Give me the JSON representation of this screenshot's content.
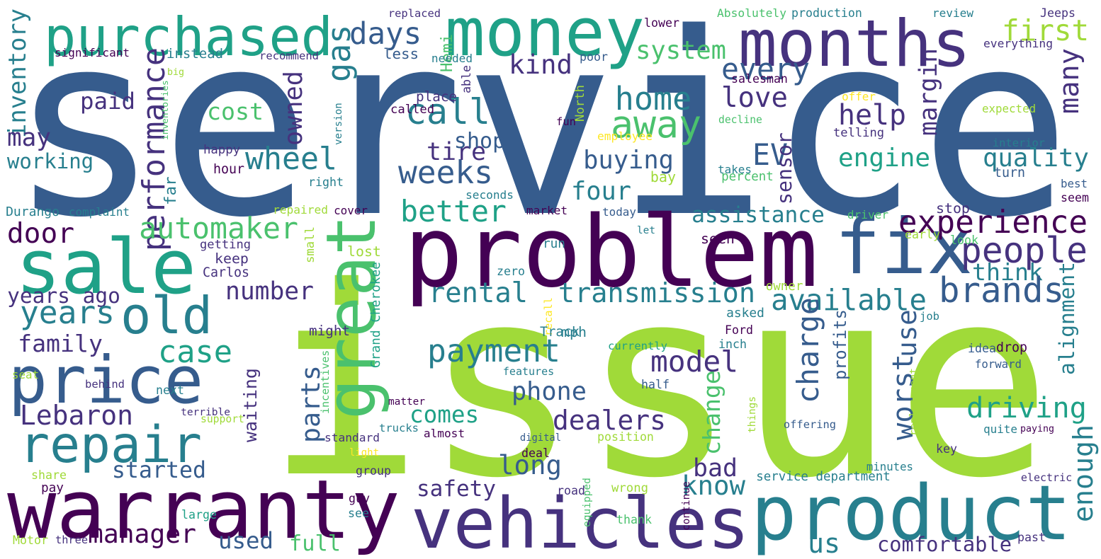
{
  "title": "",
  "palette": {
    "dark_purple": "#440154",
    "indigo": "#46327e",
    "blue": "#365c8d",
    "teal_blue": "#277f8e",
    "teal": "#1fa187",
    "green": "#4ac16d",
    "lime": "#a0da39",
    "yellow": "#fde725"
  },
  "words": [
    {
      "text": "service",
      "color": "#365c8d"
    },
    {
      "text": "issue",
      "color": "#a0da39"
    },
    {
      "text": "problem",
      "color": "#440154"
    },
    {
      "text": "warranty",
      "color": "#440154"
    },
    {
      "text": "vehicles",
      "color": "#46327e"
    },
    {
      "text": "product",
      "color": "#277f8e"
    },
    {
      "text": "money",
      "color": "#1fa187"
    },
    {
      "text": "months",
      "color": "#46327e"
    },
    {
      "text": "purchased",
      "color": "#1fa187"
    },
    {
      "text": "sale",
      "color": "#1fa187"
    },
    {
      "text": "price",
      "color": "#365c8d"
    },
    {
      "text": "repair",
      "color": "#277f8e"
    },
    {
      "text": "fix",
      "color": "#365c8d"
    },
    {
      "text": "great",
      "color": "#4ac16d"
    },
    {
      "text": "old",
      "color": "#277f8e"
    },
    {
      "text": "first",
      "color": "#a0da39"
    },
    {
      "text": "days",
      "color": "#365c8d"
    },
    {
      "text": "gas",
      "color": "#277f8e"
    },
    {
      "text": "system",
      "color": "#4ac16d"
    },
    {
      "text": "kind",
      "color": "#46327e"
    },
    {
      "text": "every",
      "color": "#365c8d"
    },
    {
      "text": "love",
      "color": "#46327e"
    },
    {
      "text": "call",
      "color": "#277f8e"
    },
    {
      "text": "cost",
      "color": "#4ac16d"
    },
    {
      "text": "performance",
      "color": "#46327e"
    },
    {
      "text": "home",
      "color": "#277f8e"
    },
    {
      "text": "away",
      "color": "#4ac16d"
    },
    {
      "text": "help",
      "color": "#46327e"
    },
    {
      "text": "wheel",
      "color": "#277f8e"
    },
    {
      "text": "owned",
      "color": "#46327e"
    },
    {
      "text": "EV",
      "color": "#365c8d"
    },
    {
      "text": "engine",
      "color": "#1fa187"
    },
    {
      "text": "quality",
      "color": "#277f8e"
    },
    {
      "text": "weeks",
      "color": "#365c8d"
    },
    {
      "text": "buying",
      "color": "#365c8d"
    },
    {
      "text": "sensor",
      "color": "#46327e"
    },
    {
      "text": "margin",
      "color": "#46327e"
    },
    {
      "text": "many",
      "color": "#46327e"
    },
    {
      "text": "inventory",
      "color": "#277f8e"
    },
    {
      "text": "paid",
      "color": "#46327e"
    },
    {
      "text": "may",
      "color": "#46327e"
    },
    {
      "text": "working",
      "color": "#277f8e"
    },
    {
      "text": "automaker",
      "color": "#4ac16d"
    },
    {
      "text": "tire",
      "color": "#46327e"
    },
    {
      "text": "shop",
      "color": "#365c8d"
    },
    {
      "text": "four",
      "color": "#277f8e"
    },
    {
      "text": "better",
      "color": "#1fa187"
    },
    {
      "text": "door",
      "color": "#440154"
    },
    {
      "text": "assistance",
      "color": "#277f8e"
    },
    {
      "text": "experience",
      "color": "#440154"
    },
    {
      "text": "people",
      "color": "#46327e"
    },
    {
      "text": "rental",
      "color": "#277f8e"
    },
    {
      "text": "transmission",
      "color": "#277f8e"
    },
    {
      "text": "think",
      "color": "#277f8e"
    },
    {
      "text": "brands",
      "color": "#365c8d"
    },
    {
      "text": "number",
      "color": "#46327e"
    },
    {
      "text": "Grand Cherokee",
      "color": "#1fa187"
    },
    {
      "text": "years ago",
      "color": "#46327e"
    },
    {
      "text": "years",
      "color": "#277f8e"
    },
    {
      "text": "available",
      "color": "#277f8e"
    },
    {
      "text": "alignment",
      "color": "#277f8e"
    },
    {
      "text": "charge",
      "color": "#365c8d"
    },
    {
      "text": "use",
      "color": "#365c8d"
    },
    {
      "text": "profits",
      "color": "#365c8d"
    },
    {
      "text": "family",
      "color": "#46327e"
    },
    {
      "text": "case",
      "color": "#1fa187"
    },
    {
      "text": "payment",
      "color": "#277f8e"
    },
    {
      "text": "model",
      "color": "#46327e"
    },
    {
      "text": "worst",
      "color": "#365c8d"
    },
    {
      "text": "driving",
      "color": "#1fa187"
    },
    {
      "text": "waiting",
      "color": "#46327e"
    },
    {
      "text": "parts",
      "color": "#365c8d"
    },
    {
      "text": "phone",
      "color": "#365c8d"
    },
    {
      "text": "dealers",
      "color": "#46327e"
    },
    {
      "text": "change",
      "color": "#4ac16d"
    },
    {
      "text": "enough",
      "color": "#277f8e"
    },
    {
      "text": "Lebaron",
      "color": "#46327e"
    },
    {
      "text": "comes",
      "color": "#1fa187"
    },
    {
      "text": "bad",
      "color": "#46327e"
    },
    {
      "text": "started",
      "color": "#365c8d"
    },
    {
      "text": "manager",
      "color": "#440154"
    },
    {
      "text": "long",
      "color": "#365c8d"
    },
    {
      "text": "safety",
      "color": "#46327e"
    },
    {
      "text": "know",
      "color": "#277f8e"
    },
    {
      "text": "used",
      "color": "#365c8d"
    },
    {
      "text": "full",
      "color": "#4ac16d"
    },
    {
      "text": "us",
      "color": "#277f8e"
    },
    {
      "text": "comfortable",
      "color": "#46327e"
    },
    {
      "text": "service department",
      "color": "#277f8e"
    },
    {
      "text": "replaced",
      "color": "#46327e"
    },
    {
      "text": "Hemi",
      "color": "#4ac16d"
    },
    {
      "text": "lower",
      "color": "#440154"
    },
    {
      "text": "Absolutely",
      "color": "#4ac16d"
    },
    {
      "text": "production",
      "color": "#277f8e"
    },
    {
      "text": "review",
      "color": "#277f8e"
    },
    {
      "text": "Jeeps",
      "color": "#46327e"
    },
    {
      "text": "significant",
      "color": "#440154"
    },
    {
      "text": "instead",
      "color": "#277f8e"
    },
    {
      "text": "recommend",
      "color": "#46327e"
    },
    {
      "text": "less",
      "color": "#365c8d"
    },
    {
      "text": "poor",
      "color": "#365c8d"
    },
    {
      "text": "everything",
      "color": "#46327e"
    },
    {
      "text": "big",
      "color": "#a0da39"
    },
    {
      "text": "needed",
      "color": "#277f8e"
    },
    {
      "text": "able",
      "color": "#46327e"
    },
    {
      "text": "salesman",
      "color": "#440154"
    },
    {
      "text": "offer",
      "color": "#fde725"
    },
    {
      "text": "inventories",
      "color": "#4ac16d"
    },
    {
      "text": "place",
      "color": "#46327e"
    },
    {
      "text": "called",
      "color": "#440154"
    },
    {
      "text": "North",
      "color": "#a0da39"
    },
    {
      "text": "decline",
      "color": "#4ac16d"
    },
    {
      "text": "expected",
      "color": "#a0da39"
    },
    {
      "text": "version",
      "color": "#277f8e"
    },
    {
      "text": "fun",
      "color": "#440154"
    },
    {
      "text": "employee",
      "color": "#fde725"
    },
    {
      "text": "telling",
      "color": "#46327e"
    },
    {
      "text": "interior",
      "color": "#277f8e"
    },
    {
      "text": "happy",
      "color": "#46327e"
    },
    {
      "text": "hour",
      "color": "#440154"
    },
    {
      "text": "far",
      "color": "#277f8e"
    },
    {
      "text": "takes",
      "color": "#277f8e"
    },
    {
      "text": "turn",
      "color": "#365c8d"
    },
    {
      "text": "right",
      "color": "#277f8e"
    },
    {
      "text": "seconds",
      "color": "#277f8e"
    },
    {
      "text": "bay",
      "color": "#a0da39"
    },
    {
      "text": "percent",
      "color": "#4ac16d"
    },
    {
      "text": "stop",
      "color": "#46327e"
    },
    {
      "text": "best",
      "color": "#365c8d"
    },
    {
      "text": "seem",
      "color": "#440154"
    },
    {
      "text": "Durango",
      "color": "#277f8e"
    },
    {
      "text": "complaint",
      "color": "#277f8e"
    },
    {
      "text": "repaired",
      "color": "#a0da39"
    },
    {
      "text": "cover",
      "color": "#440154"
    },
    {
      "text": "market",
      "color": "#440154"
    },
    {
      "text": "today",
      "color": "#365c8d"
    },
    {
      "text": "driver",
      "color": "#4ac16d"
    },
    {
      "text": "early",
      "color": "#a0da39"
    },
    {
      "text": "let",
      "color": "#277f8e"
    },
    {
      "text": "getting",
      "color": "#46327e"
    },
    {
      "text": "keep",
      "color": "#46327e"
    },
    {
      "text": "small",
      "color": "#a0da39"
    },
    {
      "text": "run",
      "color": "#277f8e"
    },
    {
      "text": "seen",
      "color": "#440154"
    },
    {
      "text": "look",
      "color": "#4ac16d"
    },
    {
      "text": "lost",
      "color": "#a0da39"
    },
    {
      "text": "Carlos",
      "color": "#46327e"
    },
    {
      "text": "zero",
      "color": "#277f8e"
    },
    {
      "text": "owner",
      "color": "#a0da39"
    },
    {
      "text": "asked",
      "color": "#277f8e"
    },
    {
      "text": "recall",
      "color": "#fde725"
    },
    {
      "text": "mph",
      "color": "#277f8e"
    },
    {
      "text": "might",
      "color": "#46327e"
    },
    {
      "text": "Track",
      "color": "#277f8e"
    },
    {
      "text": "Ford",
      "color": "#440154"
    },
    {
      "text": "job",
      "color": "#277f8e"
    },
    {
      "text": "inch",
      "color": "#277f8e"
    },
    {
      "text": "currently",
      "color": "#1fa187"
    },
    {
      "text": "idea",
      "color": "#365c8d"
    },
    {
      "text": "drop",
      "color": "#440154"
    },
    {
      "text": "seat",
      "color": "#a0da39"
    },
    {
      "text": "incentives",
      "color": "#4ac16d"
    },
    {
      "text": "features",
      "color": "#277f8e"
    },
    {
      "text": "forward",
      "color": "#365c8d"
    },
    {
      "text": "behind",
      "color": "#46327e"
    },
    {
      "text": "next",
      "color": "#277f8e"
    },
    {
      "text": "matter",
      "color": "#440154"
    },
    {
      "text": "terrible",
      "color": "#46327e"
    },
    {
      "text": "half",
      "color": "#365c8d"
    },
    {
      "text": "things",
      "color": "#a0da39"
    },
    {
      "text": "replacement",
      "color": "#a0da39"
    },
    {
      "text": "support",
      "color": "#a0da39"
    },
    {
      "text": "trucks",
      "color": "#277f8e"
    },
    {
      "text": "offering",
      "color": "#365c8d"
    },
    {
      "text": "quite",
      "color": "#277f8e"
    },
    {
      "text": "paying",
      "color": "#440154"
    },
    {
      "text": "standard",
      "color": "#46327e"
    },
    {
      "text": "almost",
      "color": "#440154"
    },
    {
      "text": "digital",
      "color": "#365c8d"
    },
    {
      "text": "position",
      "color": "#a0da39"
    },
    {
      "text": "light",
      "color": "#fde725"
    },
    {
      "text": "deal",
      "color": "#440154"
    },
    {
      "text": "key",
      "color": "#46327e"
    },
    {
      "text": "share",
      "color": "#a0da39"
    },
    {
      "text": "pay",
      "color": "#440154"
    },
    {
      "text": "group",
      "color": "#46327e"
    },
    {
      "text": "minutes",
      "color": "#277f8e"
    },
    {
      "text": "electric",
      "color": "#46327e"
    },
    {
      "text": "road",
      "color": "#46327e"
    },
    {
      "text": "equipped",
      "color": "#4ac16d"
    },
    {
      "text": "wrong",
      "color": "#a0da39"
    },
    {
      "text": "continue",
      "color": "#440154"
    },
    {
      "text": "guy",
      "color": "#440154"
    },
    {
      "text": "see",
      "color": "#277f8e"
    },
    {
      "text": "large",
      "color": "#1fa187"
    },
    {
      "text": "thank",
      "color": "#4ac16d"
    },
    {
      "text": "past",
      "color": "#46327e"
    },
    {
      "text": "Motor",
      "color": "#a0da39"
    },
    {
      "text": "three",
      "color": "#46327e"
    }
  ]
}
